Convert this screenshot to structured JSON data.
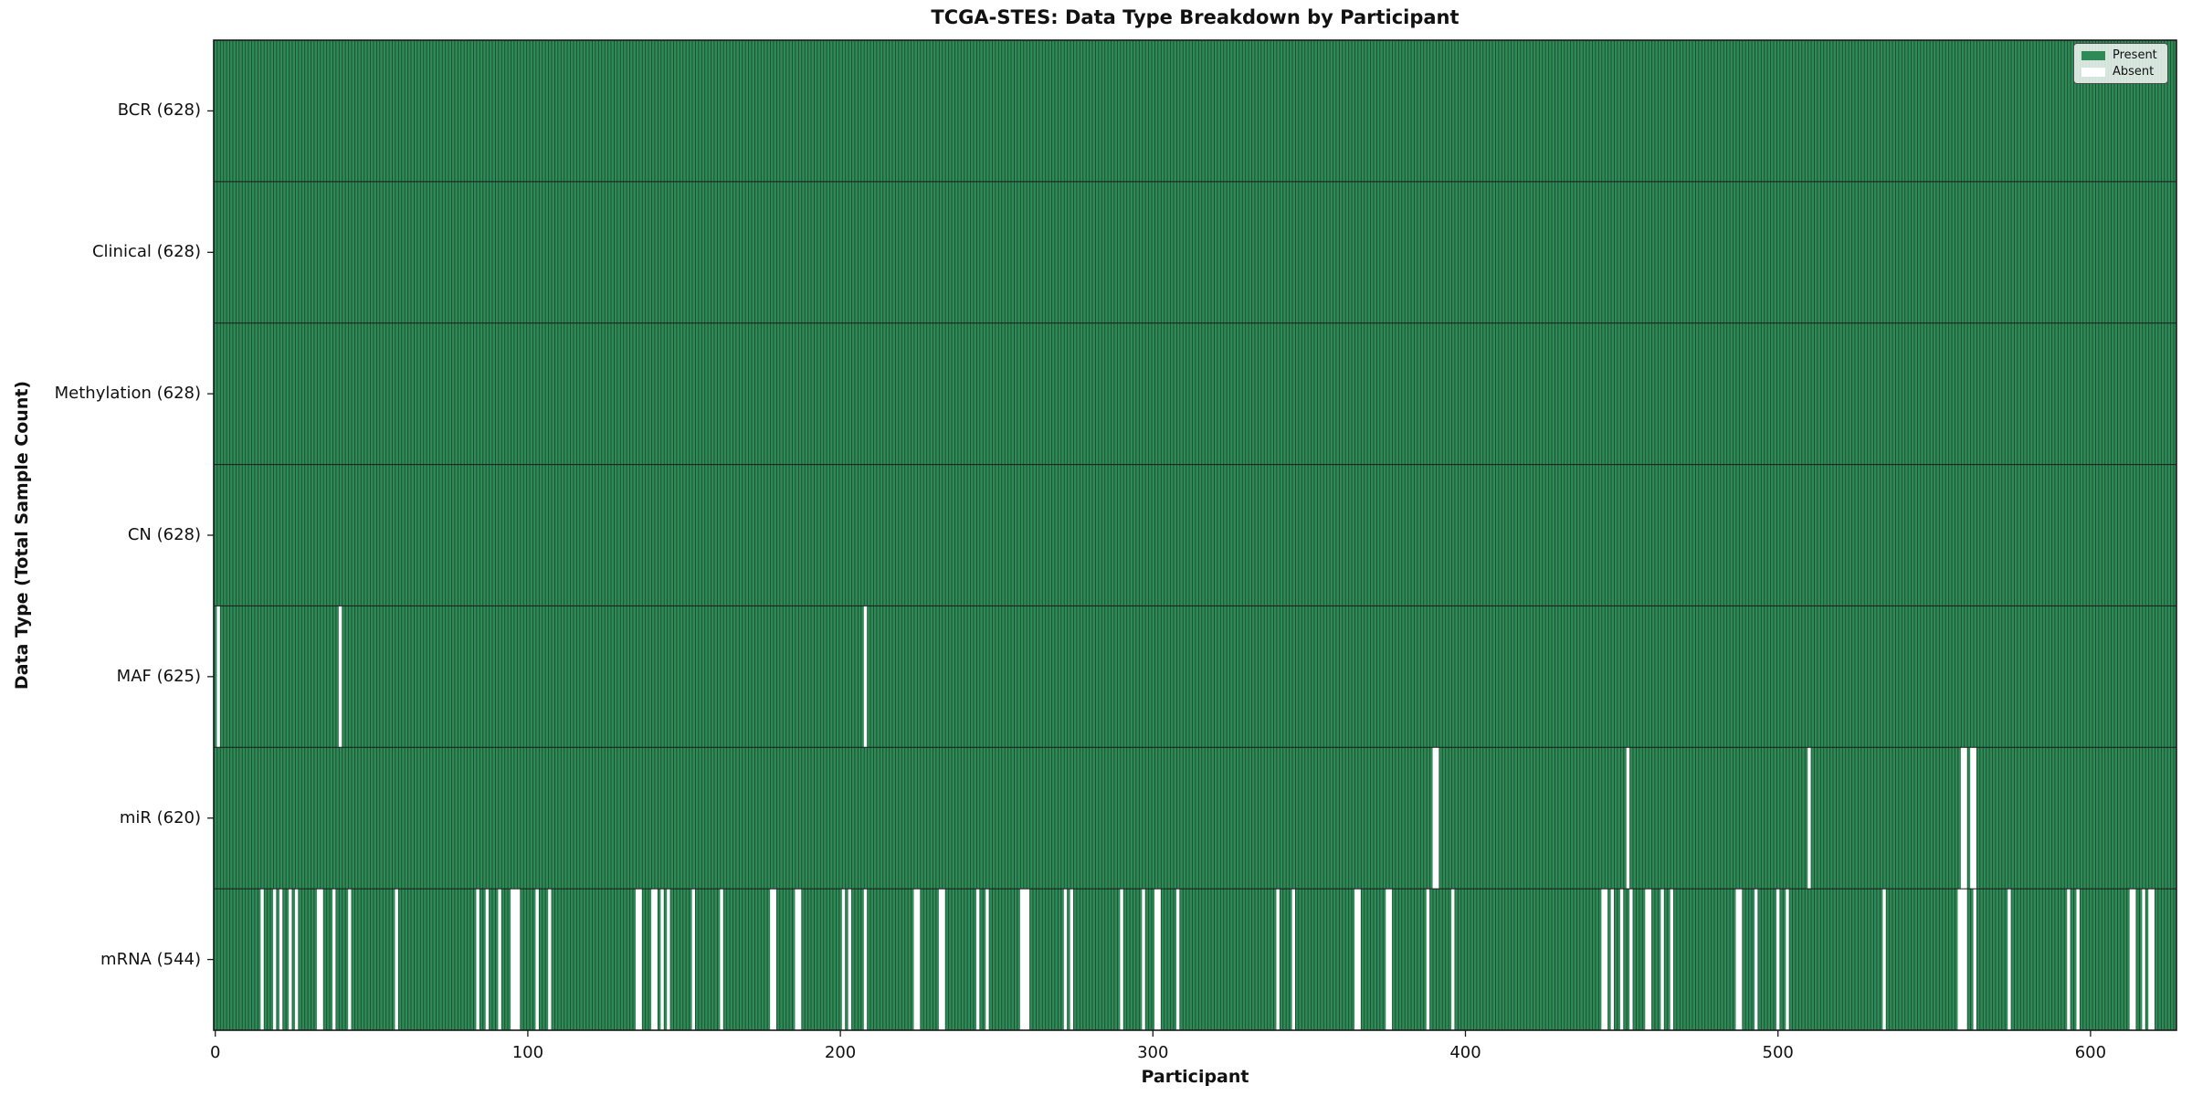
{
  "chart_data": {
    "type": "heatmap",
    "title": "TCGA-STES: Data Type Breakdown by Participant",
    "xlabel": "Participant",
    "ylabel": "Data Type (Total Sample Count)",
    "n_participants": 628,
    "xlim": [
      -0.5,
      627.5
    ],
    "x_ticks": [
      0,
      100,
      200,
      300,
      400,
      500,
      600
    ],
    "grid": false,
    "legend_position": "upper right",
    "legend": [
      {
        "label": "Present",
        "color": "#2e8b57"
      },
      {
        "label": "Absent",
        "color": "#ffffff"
      }
    ],
    "colors": {
      "present": "#2e8b57",
      "absent": "#ffffff",
      "bar_edge": "#14351f",
      "axis": "#1a1a1a",
      "text": "#111111"
    },
    "rows": [
      {
        "name": "BCR",
        "label": "BCR (628)",
        "count": 628,
        "absent": []
      },
      {
        "name": "Clinical",
        "label": "Clinical (628)",
        "count": 628,
        "absent": []
      },
      {
        "name": "Methylation",
        "label": "Methylation (628)",
        "count": 628,
        "absent": []
      },
      {
        "name": "CN",
        "label": "CN (628)",
        "count": 628,
        "absent": []
      },
      {
        "name": "MAF",
        "label": "MAF (625)",
        "count": 625,
        "absent": [
          1,
          40,
          208
        ]
      },
      {
        "name": "miR",
        "label": "miR (620)",
        "count": 620,
        "absent": [
          390,
          391,
          452,
          510,
          559,
          560,
          562,
          563
        ]
      },
      {
        "name": "mRNA",
        "label": "mRNA (544)",
        "count": 544,
        "absent": [
          15,
          19,
          21,
          24,
          26,
          33,
          34,
          38,
          43,
          58,
          84,
          87,
          91,
          95,
          96,
          97,
          103,
          107,
          135,
          136,
          140,
          141,
          143,
          145,
          153,
          162,
          178,
          179,
          186,
          187,
          201,
          203,
          208,
          224,
          225,
          232,
          233,
          244,
          247,
          258,
          259,
          260,
          272,
          274,
          290,
          297,
          301,
          302,
          308,
          340,
          345,
          365,
          366,
          375,
          376,
          388,
          396,
          444,
          445,
          447,
          450,
          453,
          458,
          459,
          463,
          466,
          487,
          488,
          493,
          500,
          503,
          534,
          558,
          559,
          560,
          563,
          574,
          593,
          596,
          613,
          614,
          617,
          619,
          620
        ]
      }
    ]
  }
}
